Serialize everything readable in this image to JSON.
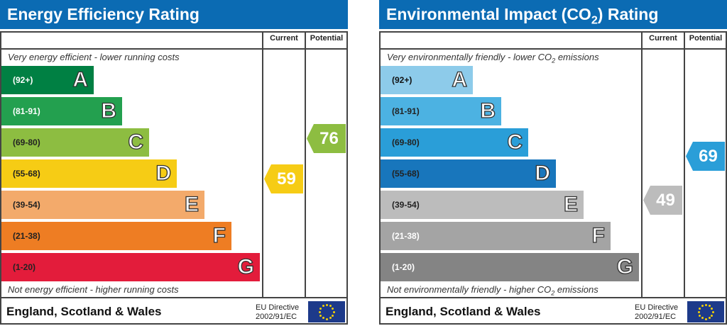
{
  "column_current": "Current",
  "column_potential": "Potential",
  "footer_region": "England, Scotland & Wales",
  "eu_line1": "EU Directive",
  "eu_line2": "2002/91/EC",
  "chart_data": [
    {
      "type": "bar",
      "title": "Energy Efficiency Rating",
      "top_note": "Very energy efficient - lower running costs",
      "bottom_note": "Not energy efficient - higher running costs",
      "bands": [
        {
          "letter": "A",
          "range": "(92+)",
          "color": "#008043",
          "text": "#fff"
        },
        {
          "letter": "B",
          "range": "(81-91)",
          "color": "#23a04f",
          "text": "#fff"
        },
        {
          "letter": "C",
          "range": "(69-80)",
          "color": "#8dbd41",
          "text": "#222"
        },
        {
          "letter": "D",
          "range": "(55-68)",
          "color": "#f6cc15",
          "text": "#222"
        },
        {
          "letter": "E",
          "range": "(39-54)",
          "color": "#f3aa6b",
          "text": "#222"
        },
        {
          "letter": "F",
          "range": "(21-38)",
          "color": "#ee7d23",
          "text": "#222"
        },
        {
          "letter": "G",
          "range": "(1-20)",
          "color": "#e31c3b",
          "text": "#222"
        }
      ],
      "current": {
        "value": 59,
        "band": "D",
        "color": "#f6cc15"
      },
      "potential": {
        "value": 76,
        "band": "C",
        "color": "#8dbd41"
      }
    },
    {
      "type": "bar",
      "title": "Environmental Impact (CO2) Rating",
      "top_note": "Very environmentally friendly - lower CO2 emissions",
      "bottom_note": "Not environmentally friendly - higher CO2 emissions",
      "bands": [
        {
          "letter": "A",
          "range": "(92+)",
          "color": "#8dcbea",
          "text": "#111"
        },
        {
          "letter": "B",
          "range": "(81-91)",
          "color": "#4cb2e2",
          "text": "#222"
        },
        {
          "letter": "C",
          "range": "(69-80)",
          "color": "#2a9ed8",
          "text": "#222"
        },
        {
          "letter": "D",
          "range": "(55-68)",
          "color": "#1876bc",
          "text": "#222"
        },
        {
          "letter": "E",
          "range": "(39-54)",
          "color": "#bcbcbc",
          "text": "#222"
        },
        {
          "letter": "F",
          "range": "(21-38)",
          "color": "#a4a4a4",
          "text": "#fff"
        },
        {
          "letter": "G",
          "range": "(1-20)",
          "color": "#848484",
          "text": "#fff"
        }
      ],
      "current": {
        "value": 49,
        "band": "E",
        "color": "#bcbcbc"
      },
      "potential": {
        "value": 69,
        "band": "C",
        "color": "#2a9ed8"
      }
    }
  ]
}
